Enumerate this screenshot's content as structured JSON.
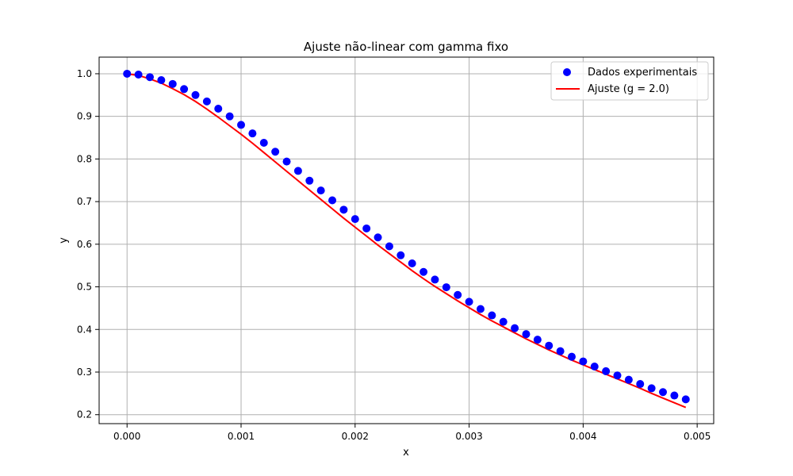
{
  "chart_data": {
    "type": "scatter",
    "title": "Ajuste não-linear com gamma fixo",
    "xlabel": "x",
    "ylabel": "y",
    "xlim": [
      -0.000245,
      0.005145
    ],
    "ylim": [
      0.179,
      1.039
    ],
    "xticks": [
      0.0,
      0.001,
      0.002,
      0.003,
      0.004,
      0.005
    ],
    "xtick_labels": [
      "0.000",
      "0.001",
      "0.002",
      "0.003",
      "0.004",
      "0.005"
    ],
    "yticks": [
      0.2,
      0.3,
      0.4,
      0.5,
      0.6,
      0.7,
      0.8,
      0.9,
      1.0
    ],
    "ytick_labels": [
      "0.2",
      "0.3",
      "0.4",
      "0.5",
      "0.6",
      "0.7",
      "0.8",
      "0.9",
      "1.0"
    ],
    "grid": true,
    "legend_position": "top-right",
    "series": [
      {
        "name": "Dados experimentais",
        "kind": "scatter",
        "color": "#0000ff",
        "x": [
          0.0,
          0.0001,
          0.0002,
          0.0003,
          0.0004,
          0.0005,
          0.0006,
          0.0007,
          0.0008,
          0.0009,
          0.001,
          0.0011,
          0.0012,
          0.0013,
          0.0014,
          0.0015,
          0.0016,
          0.0017,
          0.0018,
          0.0019,
          0.002,
          0.0021,
          0.0022,
          0.0023,
          0.0024,
          0.0025,
          0.0026,
          0.0027,
          0.0028,
          0.0029,
          0.003,
          0.0031,
          0.0032,
          0.0033,
          0.0034,
          0.0035,
          0.0036,
          0.0037,
          0.0038,
          0.0039,
          0.004,
          0.0041,
          0.0042,
          0.0043,
          0.0044,
          0.0045,
          0.0046,
          0.0047,
          0.0048,
          0.0049
        ],
        "y": [
          1.0,
          0.998,
          0.992,
          0.985,
          0.976,
          0.964,
          0.95,
          0.935,
          0.918,
          0.9,
          0.88,
          0.86,
          0.838,
          0.817,
          0.794,
          0.772,
          0.749,
          0.726,
          0.703,
          0.681,
          0.659,
          0.637,
          0.616,
          0.595,
          0.574,
          0.555,
          0.535,
          0.517,
          0.499,
          0.481,
          0.465,
          0.448,
          0.433,
          0.418,
          0.403,
          0.389,
          0.376,
          0.362,
          0.349,
          0.336,
          0.325,
          0.313,
          0.302,
          0.292,
          0.282,
          0.272,
          0.262,
          0.253,
          0.245,
          0.236
        ]
      },
      {
        "name": "Ajuste (g = 2.0)",
        "kind": "line",
        "color": "#ff0000",
        "x": [
          0.0,
          0.0001,
          0.0002,
          0.0003,
          0.0004,
          0.0005,
          0.0006,
          0.0007,
          0.0008,
          0.0009,
          0.001,
          0.0011,
          0.0012,
          0.0013,
          0.0014,
          0.0015,
          0.0016,
          0.0017,
          0.0018,
          0.0019,
          0.002,
          0.0021,
          0.0022,
          0.0023,
          0.0024,
          0.0025,
          0.0026,
          0.0027,
          0.0028,
          0.0029,
          0.003,
          0.0031,
          0.0032,
          0.0033,
          0.0034,
          0.0035,
          0.0036,
          0.0037,
          0.0038,
          0.0039,
          0.004,
          0.0041,
          0.0042,
          0.0043,
          0.0044,
          0.0045,
          0.0046,
          0.0047,
          0.0048,
          0.0049
        ],
        "y": [
          1.0,
          0.996,
          0.988,
          0.978,
          0.965,
          0.951,
          0.935,
          0.917,
          0.898,
          0.878,
          0.858,
          0.837,
          0.815,
          0.793,
          0.771,
          0.749,
          0.727,
          0.705,
          0.683,
          0.661,
          0.64,
          0.619,
          0.598,
          0.578,
          0.558,
          0.538,
          0.519,
          0.501,
          0.484,
          0.467,
          0.451,
          0.435,
          0.42,
          0.406,
          0.392,
          0.378,
          0.365,
          0.352,
          0.34,
          0.328,
          0.317,
          0.306,
          0.295,
          0.284,
          0.273,
          0.262,
          0.25,
          0.239,
          0.228,
          0.217
        ]
      }
    ]
  }
}
